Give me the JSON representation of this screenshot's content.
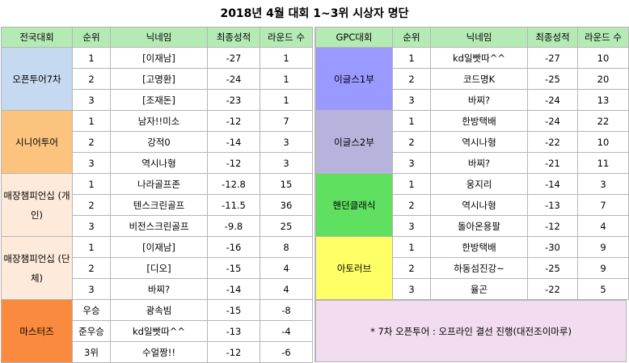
{
  "title": "2018년 4월 대회 1~3위 시상자 명단",
  "colors": {
    "header": "#b4ebb4",
    "open_tour": "#c5d9f1",
    "senior_tour": "#fcc37f",
    "store_champ": "#fdeada",
    "masters": "#f98a3e",
    "eagles1": "#9999ff",
    "eagles2": "#b7b3dd",
    "handicap": "#60e060",
    "amateur": "#ffff66",
    "note_bg": "#f2dcef"
  },
  "left": {
    "headers": [
      "전국대회",
      "순위",
      "닉네임",
      "최종성적",
      "라운드 수"
    ],
    "groups": [
      {
        "name": "오픈투어7차",
        "rows": [
          {
            "rank": "1",
            "nick": "[이재남]",
            "score": "-27",
            "rounds": "1"
          },
          {
            "rank": "2",
            "nick": "[고명환]",
            "score": "-24",
            "rounds": "1"
          },
          {
            "rank": "3",
            "nick": "[조재돈]",
            "score": "-23",
            "rounds": "1"
          }
        ]
      },
      {
        "name": "시니어투어",
        "rows": [
          {
            "rank": "1",
            "nick": "남자!!미소",
            "score": "-12",
            "rounds": "7"
          },
          {
            "rank": "2",
            "nick": "강적0",
            "score": "-14",
            "rounds": "3"
          },
          {
            "rank": "3",
            "nick": "역시나형",
            "score": "-12",
            "rounds": "3"
          }
        ]
      },
      {
        "name": "매장챔피언십 (개인)",
        "rows": [
          {
            "rank": "1",
            "nick": "나라골프존",
            "score": "-12.8",
            "rounds": "15"
          },
          {
            "rank": "2",
            "nick": "텐스크린골프",
            "score": "-11.5",
            "rounds": "36"
          },
          {
            "rank": "3",
            "nick": "비전스크린골프",
            "score": "-9.8",
            "rounds": "25"
          }
        ]
      },
      {
        "name": "매장챔피언십 (단체)",
        "rows": [
          {
            "rank": "1",
            "nick": "[이재남]",
            "score": "-16",
            "rounds": "8"
          },
          {
            "rank": "2",
            "nick": "[디오]",
            "score": "-15",
            "rounds": "4"
          },
          {
            "rank": "3",
            "nick": "바찌?",
            "score": "-14",
            "rounds": "4"
          }
        ]
      },
      {
        "name": "마스터즈",
        "rows": [
          {
            "rank": "우승",
            "nick": "광속빔",
            "score": "-15",
            "rounds": "-8"
          },
          {
            "rank": "준우승",
            "nick": "kd일빳따^^",
            "score": "-13",
            "rounds": "-4"
          },
          {
            "rank": "3위",
            "nick": "수얼짱!!",
            "score": "-12",
            "rounds": "-6"
          }
        ]
      }
    ]
  },
  "right": {
    "headers": [
      "GPC대회",
      "순위",
      "닉네임",
      "최종성적",
      "라운드 수"
    ],
    "groups": [
      {
        "name": "이글스1부",
        "rows": [
          {
            "rank": "1",
            "nick": "kd일빳따^^",
            "score": "-27",
            "rounds": "10"
          },
          {
            "rank": "2",
            "nick": "코드명K",
            "score": "-25",
            "rounds": "20"
          },
          {
            "rank": "3",
            "nick": "바찌?",
            "score": "-24",
            "rounds": "13"
          }
        ]
      },
      {
        "name": "이글스2부",
        "rows": [
          {
            "rank": "1",
            "nick": "한방택배",
            "score": "-24",
            "rounds": "22"
          },
          {
            "rank": "2",
            "nick": "역시나형",
            "score": "-22",
            "rounds": "10"
          },
          {
            "rank": "3",
            "nick": "바찌?",
            "score": "-21",
            "rounds": "11"
          }
        ]
      },
      {
        "name": "핸던클래식",
        "rows": [
          {
            "rank": "1",
            "nick": "웅지리",
            "score": "-14",
            "rounds": "3"
          },
          {
            "rank": "2",
            "nick": "역시나형",
            "score": "-13",
            "rounds": "7"
          },
          {
            "rank": "3",
            "nick": "돌아온용팔",
            "score": "-12",
            "rounds": "4"
          }
        ]
      },
      {
        "name": "아토러브",
        "rows": [
          {
            "rank": "1",
            "nick": "한방택배",
            "score": "-30",
            "rounds": "9"
          },
          {
            "rank": "2",
            "nick": "하동섬진강~",
            "score": "-25",
            "rounds": "9"
          },
          {
            "rank": "3",
            "nick": "율곤",
            "score": "-22",
            "rounds": "5"
          }
        ]
      }
    ],
    "note": "* 7차 오픈투어 : 오프라인 결선 진행(대전조이마루)"
  }
}
